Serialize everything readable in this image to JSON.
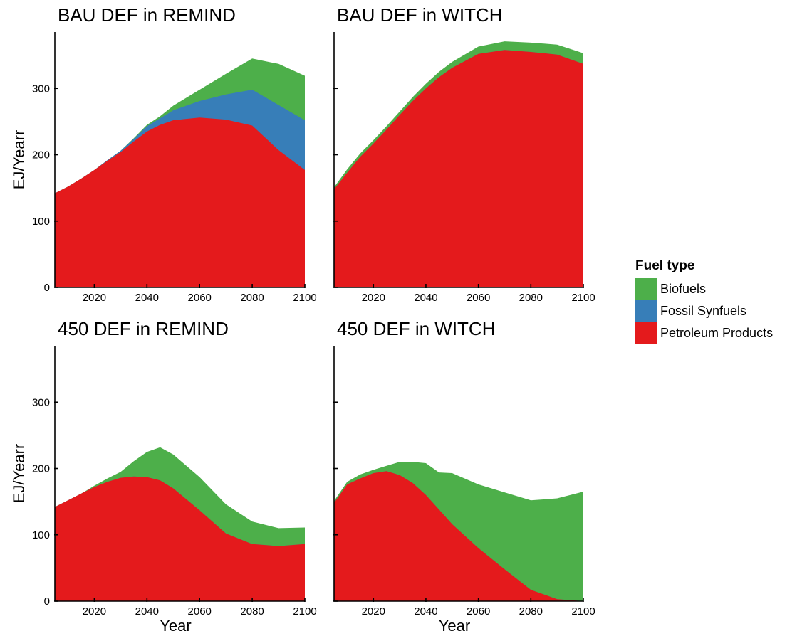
{
  "figure": {
    "legend_title": "Fuel type"
  },
  "chart_data": [
    {
      "type": "area",
      "stacked": true,
      "title": "BAU DEF in REMIND",
      "xlabel": "",
      "ylabel": "EJ/Yearr",
      "xlim": [
        2005,
        2100
      ],
      "ylim": [
        0,
        385
      ],
      "x_ticks": [
        2020,
        2040,
        2060,
        2080,
        2100
      ],
      "y_ticks": [
        0,
        100,
        200,
        300
      ],
      "x": [
        2005,
        2010,
        2015,
        2020,
        2025,
        2030,
        2035,
        2040,
        2045,
        2050,
        2060,
        2070,
        2080,
        2090,
        2100
      ],
      "series": [
        {
          "name": "Petroleum Products",
          "values": [
            142,
            152,
            164,
            177,
            191,
            204,
            220,
            235,
            245,
            252,
            256,
            253,
            244,
            207,
            177
          ]
        },
        {
          "name": "Fossil Synfuels",
          "values": [
            0,
            0,
            0,
            0,
            1,
            2,
            4,
            8,
            10,
            15,
            25,
            38,
            54,
            68,
            75
          ]
        },
        {
          "name": "Biofuels",
          "values": [
            0,
            0,
            0,
            0,
            0,
            0,
            1,
            2,
            3,
            7,
            17,
            31,
            47,
            62,
            67
          ]
        }
      ]
    },
    {
      "type": "area",
      "stacked": true,
      "title": "BAU DEF in WITCH",
      "xlabel": "",
      "ylabel": "",
      "xlim": [
        2005,
        2100
      ],
      "ylim": [
        0,
        385
      ],
      "x_ticks": [
        2020,
        2040,
        2060,
        2080,
        2100
      ],
      "y_ticks": [
        0,
        100,
        200,
        300
      ],
      "x": [
        2005,
        2010,
        2015,
        2020,
        2025,
        2030,
        2035,
        2040,
        2045,
        2050,
        2060,
        2070,
        2080,
        2090,
        2100
      ],
      "series": [
        {
          "name": "Petroleum Products",
          "values": [
            148,
            173,
            197,
            217,
            238,
            260,
            281,
            300,
            317,
            331,
            352,
            358,
            355,
            351,
            337
          ]
        },
        {
          "name": "Fossil Synfuels",
          "values": [
            0,
            0,
            0,
            0,
            0,
            0,
            0,
            0,
            0,
            0,
            0,
            0,
            0,
            0,
            0
          ]
        },
        {
          "name": "Biofuels",
          "values": [
            3,
            5,
            5,
            5,
            5,
            5,
            6,
            7,
            8,
            9,
            11,
            13,
            14,
            15,
            16
          ]
        }
      ]
    },
    {
      "type": "area",
      "stacked": true,
      "title": "450 DEF in REMIND",
      "xlabel": "Year",
      "ylabel": "EJ/Yearr",
      "xlim": [
        2005,
        2100
      ],
      "ylim": [
        0,
        385
      ],
      "x_ticks": [
        2020,
        2040,
        2060,
        2080,
        2100
      ],
      "y_ticks": [
        0,
        100,
        200,
        300
      ],
      "x": [
        2005,
        2010,
        2015,
        2020,
        2025,
        2030,
        2035,
        2040,
        2045,
        2050,
        2060,
        2070,
        2080,
        2090,
        2100
      ],
      "series": [
        {
          "name": "Petroleum Products",
          "values": [
            142,
            152,
            162,
            172,
            180,
            186,
            188,
            187,
            182,
            170,
            137,
            102,
            86,
            83,
            86
          ]
        },
        {
          "name": "Fossil Synfuels",
          "values": [
            0,
            0,
            0,
            0,
            0,
            0,
            0,
            0,
            0,
            0,
            0,
            0,
            0,
            0,
            0
          ]
        },
        {
          "name": "Biofuels",
          "values": [
            0,
            0,
            0,
            2,
            5,
            9,
            23,
            38,
            50,
            51,
            50,
            44,
            34,
            27,
            25
          ]
        }
      ]
    },
    {
      "type": "area",
      "stacked": true,
      "title": "450 DEF in WITCH",
      "xlabel": "Year",
      "ylabel": "",
      "xlim": [
        2005,
        2100
      ],
      "ylim": [
        0,
        385
      ],
      "x_ticks": [
        2020,
        2040,
        2060,
        2080,
        2100
      ],
      "y_ticks": [
        0,
        100,
        200,
        300
      ],
      "x": [
        2005,
        2010,
        2015,
        2020,
        2025,
        2030,
        2035,
        2040,
        2045,
        2050,
        2060,
        2070,
        2080,
        2090,
        2100
      ],
      "series": [
        {
          "name": "Petroleum Products",
          "values": [
            148,
            176,
            185,
            193,
            196,
            190,
            178,
            160,
            138,
            116,
            80,
            48,
            17,
            3,
            0
          ]
        },
        {
          "name": "Fossil Synfuels",
          "values": [
            0,
            0,
            0,
            0,
            0,
            0,
            0,
            0,
            0,
            0,
            0,
            0,
            0,
            0,
            0
          ]
        },
        {
          "name": "Biofuels",
          "values": [
            3,
            4,
            6,
            5,
            8,
            20,
            32,
            48,
            56,
            77,
            96,
            116,
            135,
            152,
            165
          ]
        }
      ]
    }
  ],
  "legend": [
    {
      "name": "Biofuels",
      "color": "#4daf4a"
    },
    {
      "name": "Fossil Synfuels",
      "color": "#377eb8"
    },
    {
      "name": "Petroleum Products",
      "color": "#e41a1c"
    }
  ]
}
